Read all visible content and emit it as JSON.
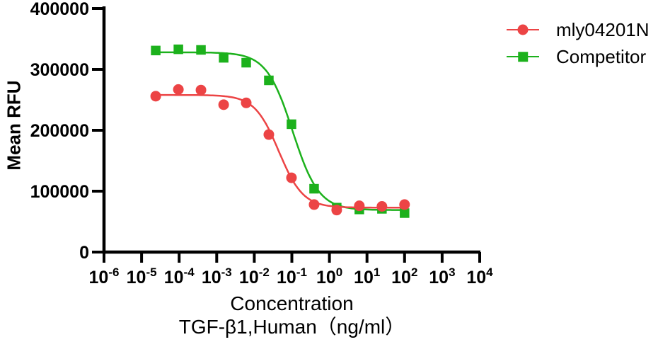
{
  "chart_data": {
    "type": "scatter",
    "subtype": "dose-response curve with 4PL fit lines",
    "title": "",
    "ylabel": "Mean RFU",
    "xlabel_line1": "Concentration",
    "xlabel_line2": "TGF-β1,Human（ng/ml）",
    "x_scale": "log10",
    "xlim": [
      1e-06,
      10000.0
    ],
    "ylim": [
      0,
      400000
    ],
    "grid": false,
    "background": "#ffffff",
    "axis_color": "#000000",
    "legend_position": "top-right",
    "x_tick_base": "10",
    "x_axis_ticks_exponents": [
      -6,
      -5,
      -4,
      -3,
      -2,
      -1,
      0,
      1,
      2,
      3,
      4
    ],
    "y_ticks": [
      0,
      100000,
      200000,
      300000,
      400000
    ],
    "concentrations_ng_ml": [
      2.38e-05,
      9.54e-05,
      0.000381,
      0.00153,
      0.0061,
      0.0244,
      0.0977,
      0.391,
      1.5625,
      6.25,
      25,
      100
    ],
    "series": [
      {
        "name": "mly04201N",
        "color": "#ec4445",
        "marker": "circle",
        "mean_rfu": [
          256000,
          267000,
          266000,
          242000,
          245000,
          193000,
          122000,
          78000,
          69000,
          76000,
          75000,
          78000
        ],
        "fit_4pl": {
          "top": 258000,
          "bottom": 73000,
          "ec50": 0.045,
          "hill": 1.35
        }
      },
      {
        "name": "Competitor",
        "color": "#1cb11c",
        "marker": "square",
        "mean_rfu": [
          331000,
          333000,
          332000,
          319000,
          311000,
          282000,
          210000,
          104000,
          73000,
          70000,
          71000,
          64000
        ],
        "fit_4pl": {
          "top": 328000,
          "bottom": 69000,
          "ec50": 0.105,
          "hill": 1.25
        }
      }
    ]
  }
}
